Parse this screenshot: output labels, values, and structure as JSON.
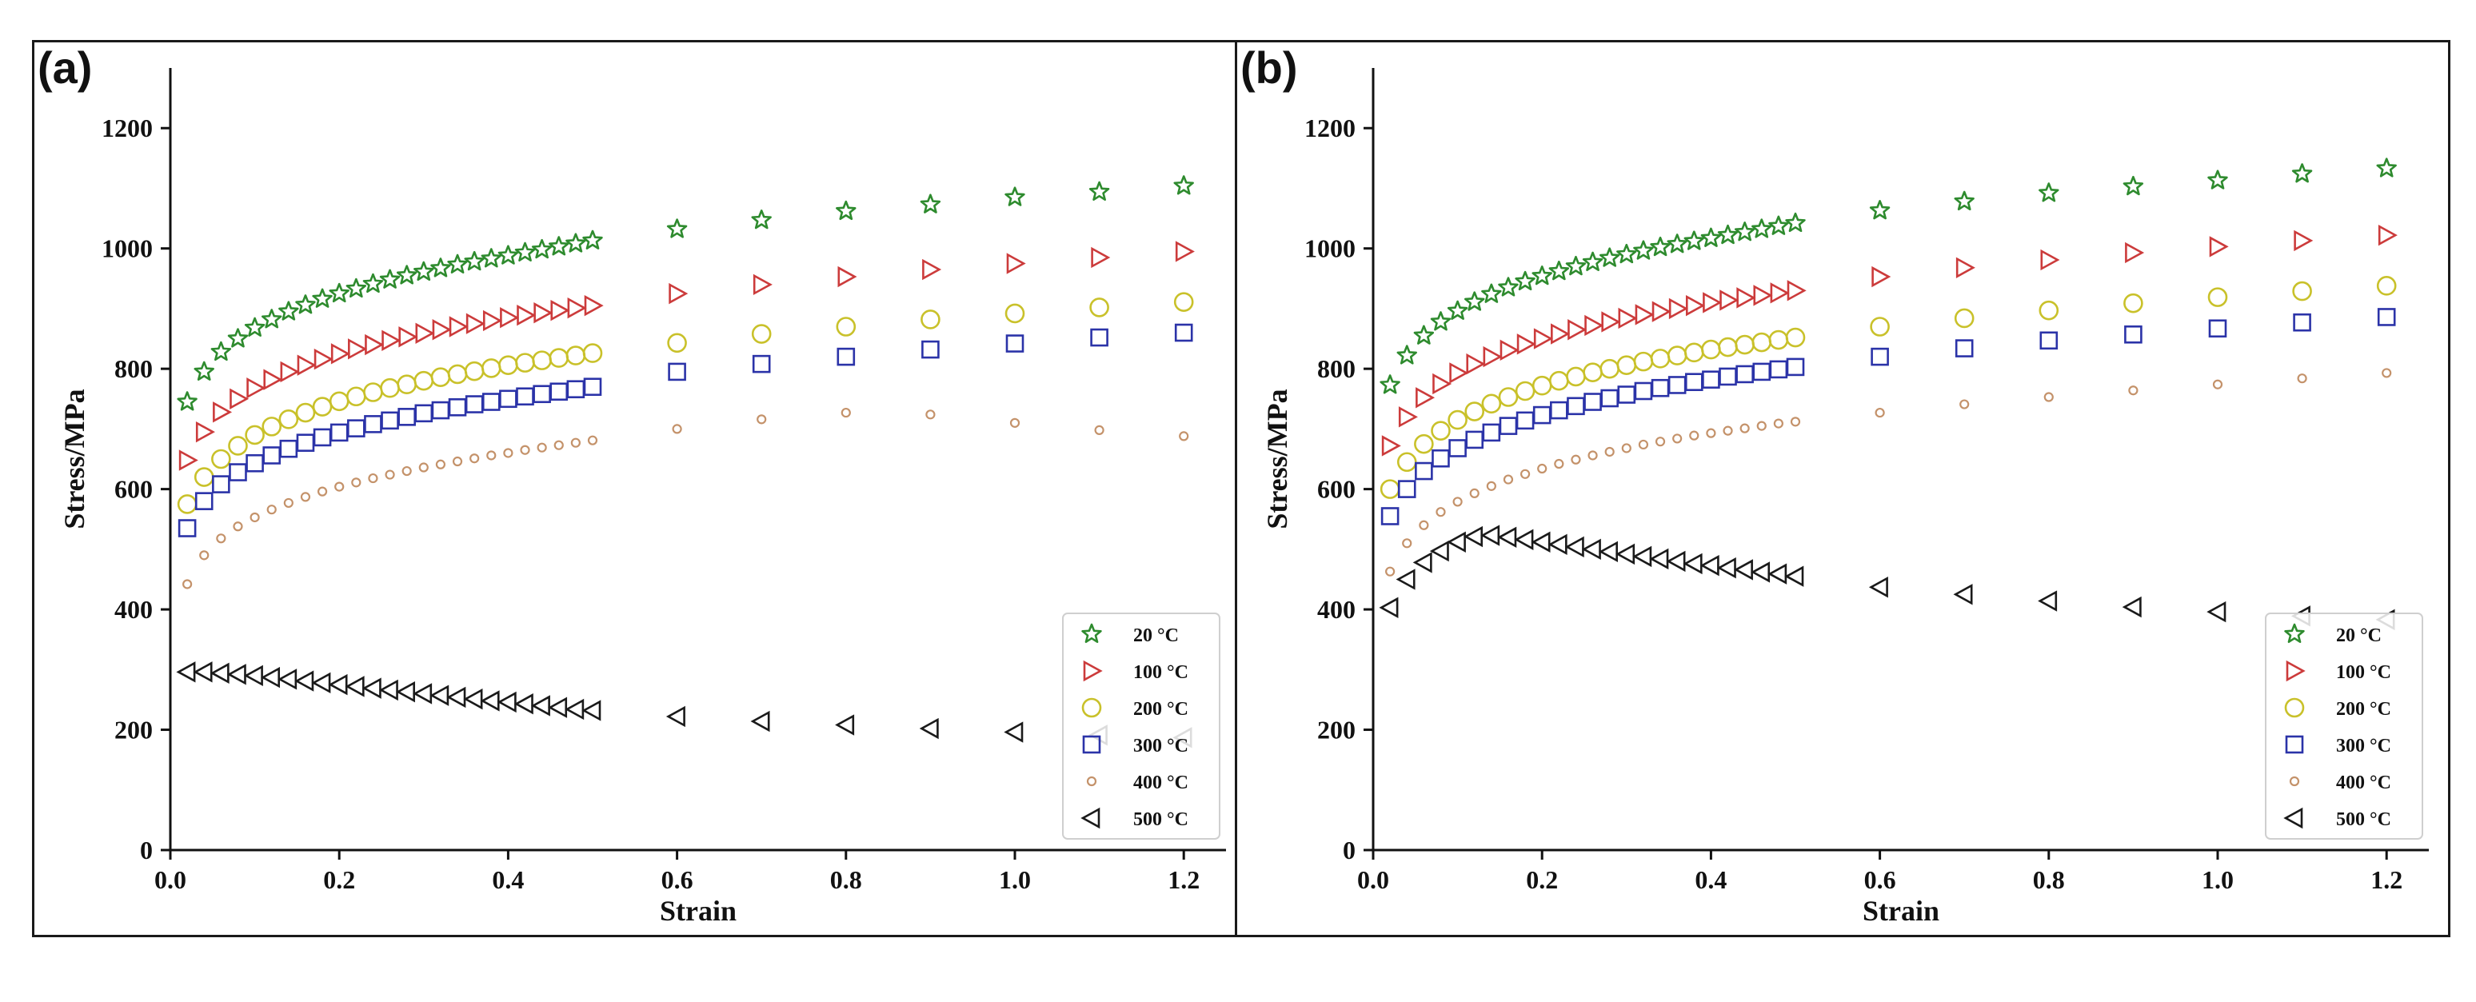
{
  "chart_data": [
    {
      "panel_label": "(a)",
      "type": "scatter",
      "xlabel": "Strain",
      "ylabel": "Stress/MPa",
      "xlim": [
        0,
        1.25
      ],
      "ylim": [
        0,
        1300
      ],
      "xticks": [
        "0.0",
        "0.2",
        "0.4",
        "0.6",
        "0.8",
        "1.0",
        "1.2"
      ],
      "yticks": [
        "0",
        "200",
        "400",
        "600",
        "800",
        "1000",
        "1200"
      ],
      "legend_position": "bottom-right",
      "series": [
        {
          "name": "20 °C",
          "marker": "star",
          "color": "#2e8b2e",
          "x": [
            0.02,
            0.04,
            0.06,
            0.08,
            0.1,
            0.12,
            0.14,
            0.16,
            0.18,
            0.2,
            0.22,
            0.24,
            0.26,
            0.28,
            0.3,
            0.32,
            0.34,
            0.36,
            0.38,
            0.4,
            0.42,
            0.44,
            0.46,
            0.48,
            0.5,
            0.6,
            0.7,
            0.8,
            0.9,
            1.0,
            1.1,
            1.2
          ],
          "y": [
            745,
            795,
            828,
            850,
            868,
            882,
            895,
            906,
            916,
            925,
            933,
            941,
            948,
            955,
            961,
            967,
            973,
            978,
            983,
            988,
            993,
            998,
            1003,
            1008,
            1013,
            1032,
            1047,
            1062,
            1073,
            1085,
            1094,
            1104
          ]
        },
        {
          "name": "100 °C",
          "marker": "triangle-right",
          "color": "#cc3b3b",
          "x": [
            0.02,
            0.04,
            0.06,
            0.08,
            0.1,
            0.12,
            0.14,
            0.16,
            0.18,
            0.2,
            0.22,
            0.24,
            0.26,
            0.28,
            0.3,
            0.32,
            0.34,
            0.36,
            0.38,
            0.4,
            0.42,
            0.44,
            0.46,
            0.48,
            0.5,
            0.6,
            0.7,
            0.8,
            0.9,
            1.0,
            1.1,
            1.2
          ],
          "y": [
            648,
            695,
            728,
            750,
            768,
            782,
            795,
            806,
            816,
            825,
            833,
            840,
            847,
            853,
            859,
            865,
            870,
            875,
            880,
            885,
            889,
            893,
            897,
            901,
            905,
            925,
            940,
            953,
            965,
            975,
            985,
            995
          ]
        },
        {
          "name": "200 °C",
          "marker": "circle",
          "color": "#c9c12a",
          "x": [
            0.02,
            0.04,
            0.06,
            0.08,
            0.1,
            0.12,
            0.14,
            0.16,
            0.18,
            0.2,
            0.22,
            0.24,
            0.26,
            0.28,
            0.3,
            0.32,
            0.34,
            0.36,
            0.38,
            0.4,
            0.42,
            0.44,
            0.46,
            0.48,
            0.5,
            0.6,
            0.7,
            0.8,
            0.9,
            1.0,
            1.1,
            1.2
          ],
          "y": [
            575,
            620,
            650,
            672,
            690,
            704,
            716,
            727,
            737,
            746,
            754,
            761,
            768,
            774,
            780,
            786,
            791,
            796,
            801,
            806,
            810,
            814,
            818,
            822,
            826,
            843,
            858,
            870,
            882,
            892,
            902,
            911
          ]
        },
        {
          "name": "300 °C",
          "marker": "square",
          "color": "#2b33a8",
          "x": [
            0.02,
            0.04,
            0.06,
            0.08,
            0.1,
            0.12,
            0.14,
            0.16,
            0.18,
            0.2,
            0.22,
            0.24,
            0.26,
            0.28,
            0.3,
            0.32,
            0.34,
            0.36,
            0.38,
            0.4,
            0.42,
            0.44,
            0.46,
            0.48,
            0.5,
            0.6,
            0.7,
            0.8,
            0.9,
            1.0,
            1.1,
            1.2
          ],
          "y": [
            535,
            580,
            608,
            628,
            643,
            656,
            667,
            677,
            686,
            694,
            701,
            708,
            714,
            720,
            726,
            731,
            736,
            741,
            745,
            750,
            754,
            758,
            762,
            766,
            770,
            795,
            808,
            820,
            832,
            842,
            852,
            860
          ]
        },
        {
          "name": "400 °C",
          "marker": "small-circle",
          "color": "#c4926a",
          "x": [
            0.02,
            0.04,
            0.06,
            0.08,
            0.1,
            0.12,
            0.14,
            0.16,
            0.18,
            0.2,
            0.22,
            0.24,
            0.26,
            0.28,
            0.3,
            0.32,
            0.34,
            0.36,
            0.38,
            0.4,
            0.42,
            0.44,
            0.46,
            0.48,
            0.5,
            0.6,
            0.7,
            0.8,
            0.9,
            1.0,
            1.1,
            1.2
          ],
          "y": [
            442,
            490,
            518,
            538,
            553,
            566,
            577,
            587,
            596,
            604,
            611,
            618,
            624,
            630,
            636,
            641,
            646,
            651,
            656,
            660,
            665,
            669,
            673,
            677,
            681,
            700,
            716,
            727,
            724,
            710,
            698,
            688
          ]
        },
        {
          "name": "500 °C",
          "marker": "triangle-left",
          "color": "#1a1a1a",
          "x": [
            0.02,
            0.04,
            0.06,
            0.08,
            0.1,
            0.12,
            0.14,
            0.16,
            0.18,
            0.2,
            0.22,
            0.24,
            0.26,
            0.28,
            0.3,
            0.32,
            0.34,
            0.36,
            0.38,
            0.4,
            0.42,
            0.44,
            0.46,
            0.48,
            0.5,
            0.6,
            0.7,
            0.8,
            0.9,
            1.0,
            1.1,
            1.2
          ],
          "y": [
            296,
            296,
            294,
            292,
            290,
            287,
            284,
            281,
            278,
            275,
            272,
            269,
            266,
            263,
            260,
            257,
            254,
            251,
            248,
            246,
            243,
            240,
            237,
            234,
            232,
            222,
            214,
            208,
            202,
            196,
            191,
            187
          ]
        }
      ]
    },
    {
      "panel_label": "(b)",
      "type": "scatter",
      "xlabel": "Strain",
      "ylabel": "Stress/MPa",
      "xlim": [
        0,
        1.25
      ],
      "ylim": [
        0,
        1300
      ],
      "xticks": [
        "0.0",
        "0.2",
        "0.4",
        "0.6",
        "0.8",
        "1.0",
        "1.2"
      ],
      "yticks": [
        "0",
        "200",
        "400",
        "600",
        "800",
        "1000",
        "1200"
      ],
      "legend_position": "bottom-right",
      "series": [
        {
          "name": "20 °C",
          "marker": "star",
          "color": "#2e8b2e",
          "x": [
            0.02,
            0.04,
            0.06,
            0.08,
            0.1,
            0.12,
            0.14,
            0.16,
            0.18,
            0.2,
            0.22,
            0.24,
            0.26,
            0.28,
            0.3,
            0.32,
            0.34,
            0.36,
            0.38,
            0.4,
            0.42,
            0.44,
            0.46,
            0.48,
            0.5,
            0.6,
            0.7,
            0.8,
            0.9,
            1.0,
            1.1,
            1.2
          ],
          "y": [
            773,
            822,
            855,
            878,
            896,
            911,
            924,
            935,
            945,
            954,
            962,
            970,
            977,
            984,
            990,
            996,
            1002,
            1007,
            1012,
            1017,
            1022,
            1027,
            1032,
            1037,
            1042,
            1063,
            1078,
            1092,
            1103,
            1113,
            1124,
            1133
          ]
        },
        {
          "name": "100 °C",
          "marker": "triangle-right",
          "color": "#cc3b3b",
          "x": [
            0.02,
            0.04,
            0.06,
            0.08,
            0.1,
            0.12,
            0.14,
            0.16,
            0.18,
            0.2,
            0.22,
            0.24,
            0.26,
            0.28,
            0.3,
            0.32,
            0.34,
            0.36,
            0.38,
            0.4,
            0.42,
            0.44,
            0.46,
            0.48,
            0.5,
            0.6,
            0.7,
            0.8,
            0.9,
            1.0,
            1.1,
            1.2
          ],
          "y": [
            672,
            720,
            752,
            775,
            793,
            808,
            820,
            831,
            841,
            850,
            858,
            865,
            872,
            878,
            884,
            890,
            895,
            900,
            905,
            910,
            914,
            918,
            922,
            926,
            930,
            953,
            968,
            981,
            993,
            1003,
            1013,
            1022
          ]
        },
        {
          "name": "200 °C",
          "marker": "circle",
          "color": "#c9c12a",
          "x": [
            0.02,
            0.04,
            0.06,
            0.08,
            0.1,
            0.12,
            0.14,
            0.16,
            0.18,
            0.2,
            0.22,
            0.24,
            0.26,
            0.28,
            0.3,
            0.32,
            0.34,
            0.36,
            0.38,
            0.4,
            0.42,
            0.44,
            0.46,
            0.48,
            0.5,
            0.6,
            0.7,
            0.8,
            0.9,
            1.0,
            1.1,
            1.2
          ],
          "y": [
            600,
            645,
            675,
            697,
            715,
            729,
            742,
            753,
            763,
            772,
            780,
            787,
            794,
            800,
            806,
            812,
            817,
            822,
            827,
            832,
            836,
            840,
            844,
            848,
            852,
            870,
            884,
            897,
            909,
            919,
            929,
            938
          ]
        },
        {
          "name": "300 °C",
          "marker": "square",
          "color": "#2b33a8",
          "x": [
            0.02,
            0.04,
            0.06,
            0.08,
            0.1,
            0.12,
            0.14,
            0.16,
            0.18,
            0.2,
            0.22,
            0.24,
            0.26,
            0.28,
            0.3,
            0.32,
            0.34,
            0.36,
            0.38,
            0.4,
            0.42,
            0.44,
            0.46,
            0.48,
            0.5,
            0.6,
            0.7,
            0.8,
            0.9,
            1.0,
            1.1,
            1.2
          ],
          "y": [
            555,
            600,
            630,
            651,
            668,
            682,
            694,
            705,
            714,
            723,
            731,
            738,
            745,
            751,
            757,
            763,
            768,
            773,
            778,
            782,
            787,
            791,
            795,
            799,
            803,
            820,
            834,
            847,
            857,
            867,
            877,
            886
          ]
        },
        {
          "name": "400 °C",
          "marker": "small-circle",
          "color": "#c4926a",
          "x": [
            0.02,
            0.04,
            0.06,
            0.08,
            0.1,
            0.12,
            0.14,
            0.16,
            0.18,
            0.2,
            0.22,
            0.24,
            0.26,
            0.28,
            0.3,
            0.32,
            0.34,
            0.36,
            0.38,
            0.4,
            0.42,
            0.44,
            0.46,
            0.48,
            0.5,
            0.6,
            0.7,
            0.8,
            0.9,
            1.0,
            1.1,
            1.2
          ],
          "y": [
            463,
            510,
            540,
            562,
            579,
            593,
            605,
            616,
            625,
            634,
            642,
            649,
            656,
            662,
            668,
            674,
            679,
            684,
            689,
            693,
            697,
            701,
            705,
            709,
            712,
            727,
            741,
            753,
            764,
            774,
            784,
            793
          ]
        },
        {
          "name": "500 °C",
          "marker": "triangle-left",
          "color": "#1a1a1a",
          "x": [
            0.02,
            0.04,
            0.06,
            0.08,
            0.1,
            0.12,
            0.14,
            0.16,
            0.18,
            0.2,
            0.22,
            0.24,
            0.26,
            0.28,
            0.3,
            0.32,
            0.34,
            0.36,
            0.38,
            0.4,
            0.42,
            0.44,
            0.46,
            0.48,
            0.5,
            0.6,
            0.7,
            0.8,
            0.9,
            1.0,
            1.1,
            1.2
          ],
          "y": [
            403,
            450,
            478,
            497,
            512,
            521,
            523,
            520,
            516,
            512,
            508,
            504,
            500,
            496,
            492,
            488,
            484,
            480,
            476,
            473,
            469,
            466,
            462,
            459,
            455,
            437,
            425,
            414,
            404,
            396,
            389,
            383
          ]
        }
      ]
    }
  ]
}
